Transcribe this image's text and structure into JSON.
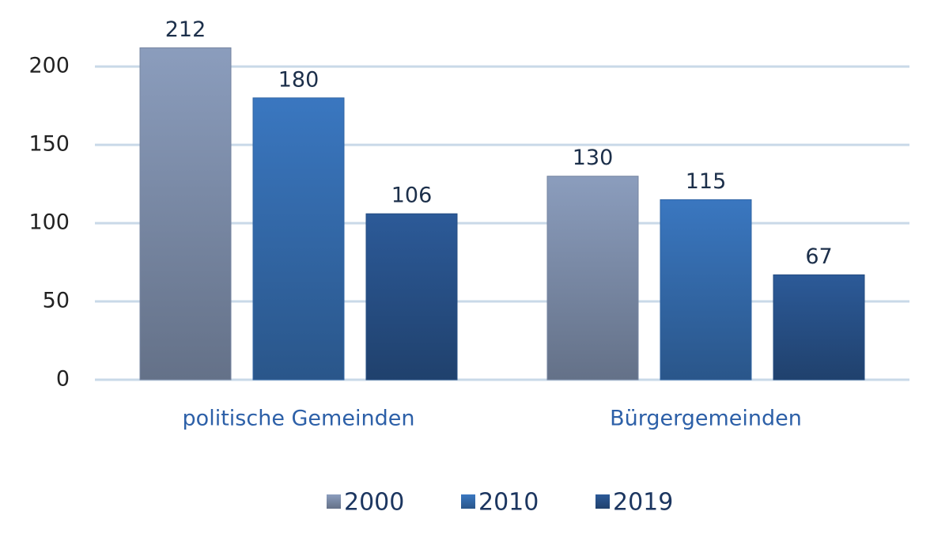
{
  "chart_data": {
    "type": "bar",
    "categories": [
      "politische Gemeinden",
      "Bürgergemeinden"
    ],
    "series": [
      {
        "name": "2000",
        "color": "#8b9dbd",
        "values": [
          212,
          130
        ]
      },
      {
        "name": "2010",
        "color": "#3a77c0",
        "values": [
          180,
          115
        ]
      },
      {
        "name": "2019",
        "color": "#2c5a98",
        "values": [
          106,
          67
        ]
      }
    ],
    "ylim": [
      0,
      240
    ],
    "yticks": [
      0,
      50,
      100,
      150,
      200
    ],
    "grid": true
  }
}
